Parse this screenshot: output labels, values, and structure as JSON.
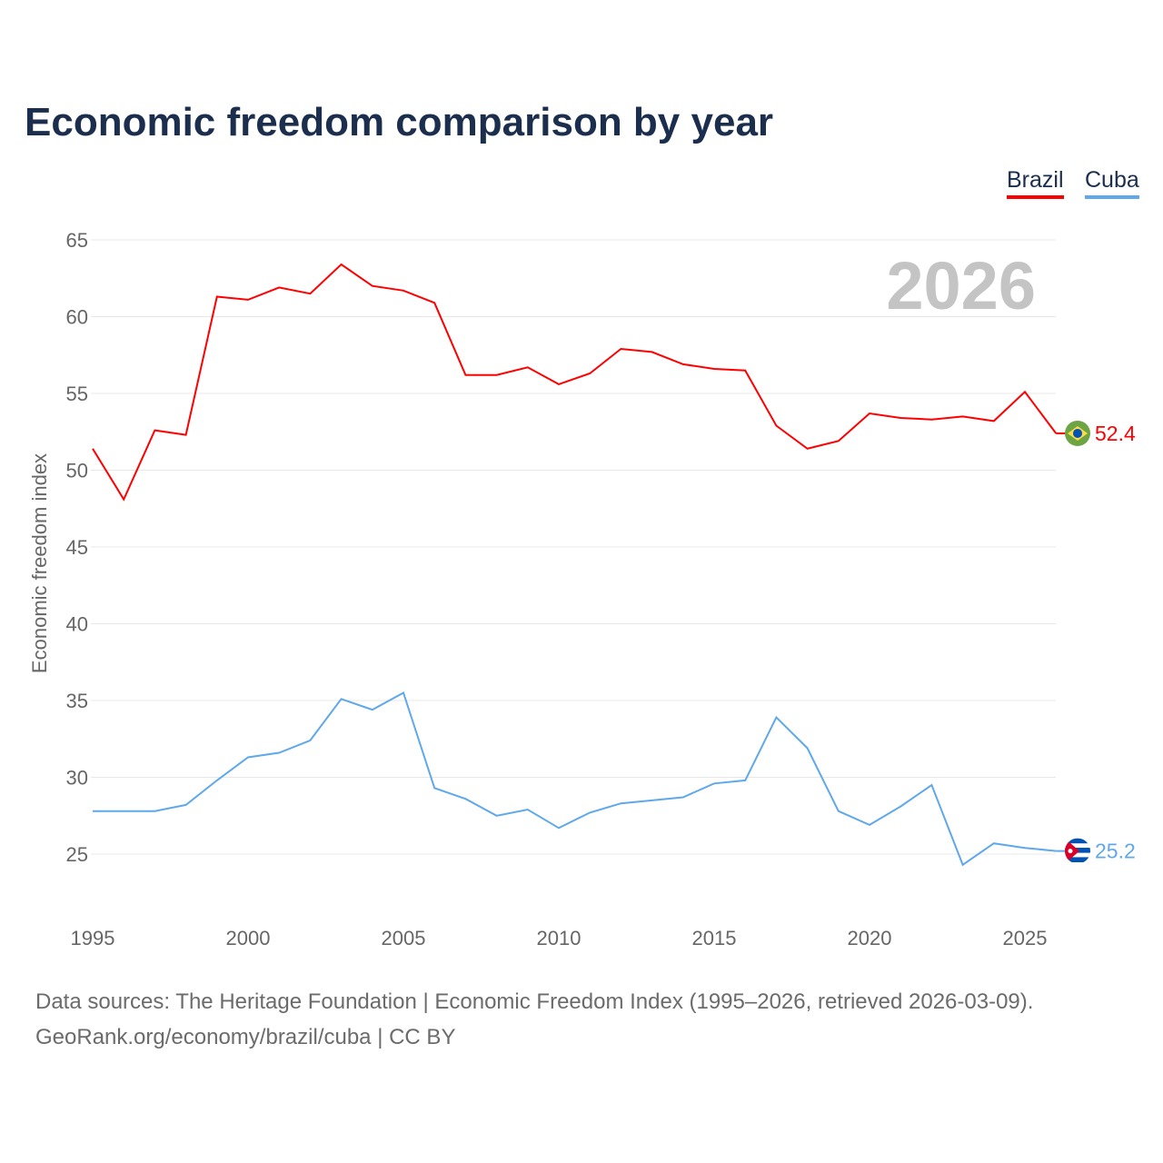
{
  "chart_data": {
    "type": "line",
    "title": "Economic freedom comparison by year",
    "xlabel": "",
    "ylabel": "Economic freedom index",
    "xlim": [
      1995,
      2026
    ],
    "ylim": [
      22,
      66
    ],
    "yticks": [
      25,
      30,
      35,
      40,
      45,
      50,
      55,
      60,
      65
    ],
    "xticks": [
      1995,
      2000,
      2005,
      2010,
      2015,
      2020,
      2025
    ],
    "grid": true,
    "legend_position": "top-right",
    "year_label": "2026",
    "x": [
      1995,
      1996,
      1997,
      1998,
      1999,
      2000,
      2001,
      2002,
      2003,
      2004,
      2005,
      2006,
      2007,
      2008,
      2009,
      2010,
      2011,
      2012,
      2013,
      2014,
      2015,
      2016,
      2017,
      2018,
      2019,
      2020,
      2021,
      2022,
      2023,
      2024,
      2025,
      2026
    ],
    "series": [
      {
        "name": "Brazil",
        "color": "#ff0000",
        "end_label": "52.4",
        "values": [
          51.4,
          48.1,
          52.6,
          52.3,
          61.3,
          61.1,
          61.9,
          61.5,
          63.4,
          62.0,
          61.7,
          60.9,
          56.2,
          56.2,
          56.7,
          55.6,
          56.3,
          57.9,
          57.7,
          56.9,
          56.6,
          56.5,
          52.9,
          51.4,
          51.9,
          53.7,
          53.4,
          53.3,
          53.5,
          53.2,
          55.1,
          52.4
        ]
      },
      {
        "name": "Cuba",
        "color": "#5fa8eb",
        "end_label": "25.2",
        "values": [
          27.8,
          27.8,
          27.8,
          28.2,
          29.8,
          31.3,
          31.6,
          32.4,
          35.1,
          34.4,
          35.5,
          29.3,
          28.6,
          27.5,
          27.9,
          26.7,
          27.7,
          28.3,
          28.5,
          28.7,
          29.6,
          29.8,
          33.9,
          31.9,
          27.8,
          26.9,
          28.1,
          29.5,
          24.3,
          25.7,
          25.4,
          25.2
        ]
      }
    ]
  },
  "legend": {
    "brazil": "Brazil",
    "cuba": "Cuba"
  },
  "source": {
    "line1": "Data sources: The Heritage Foundation | Economic Freedom Index (1995–2026, retrieved 2026-03-09).",
    "line2": "GeoRank.org/economy/brazil/cuba | CC BY"
  }
}
